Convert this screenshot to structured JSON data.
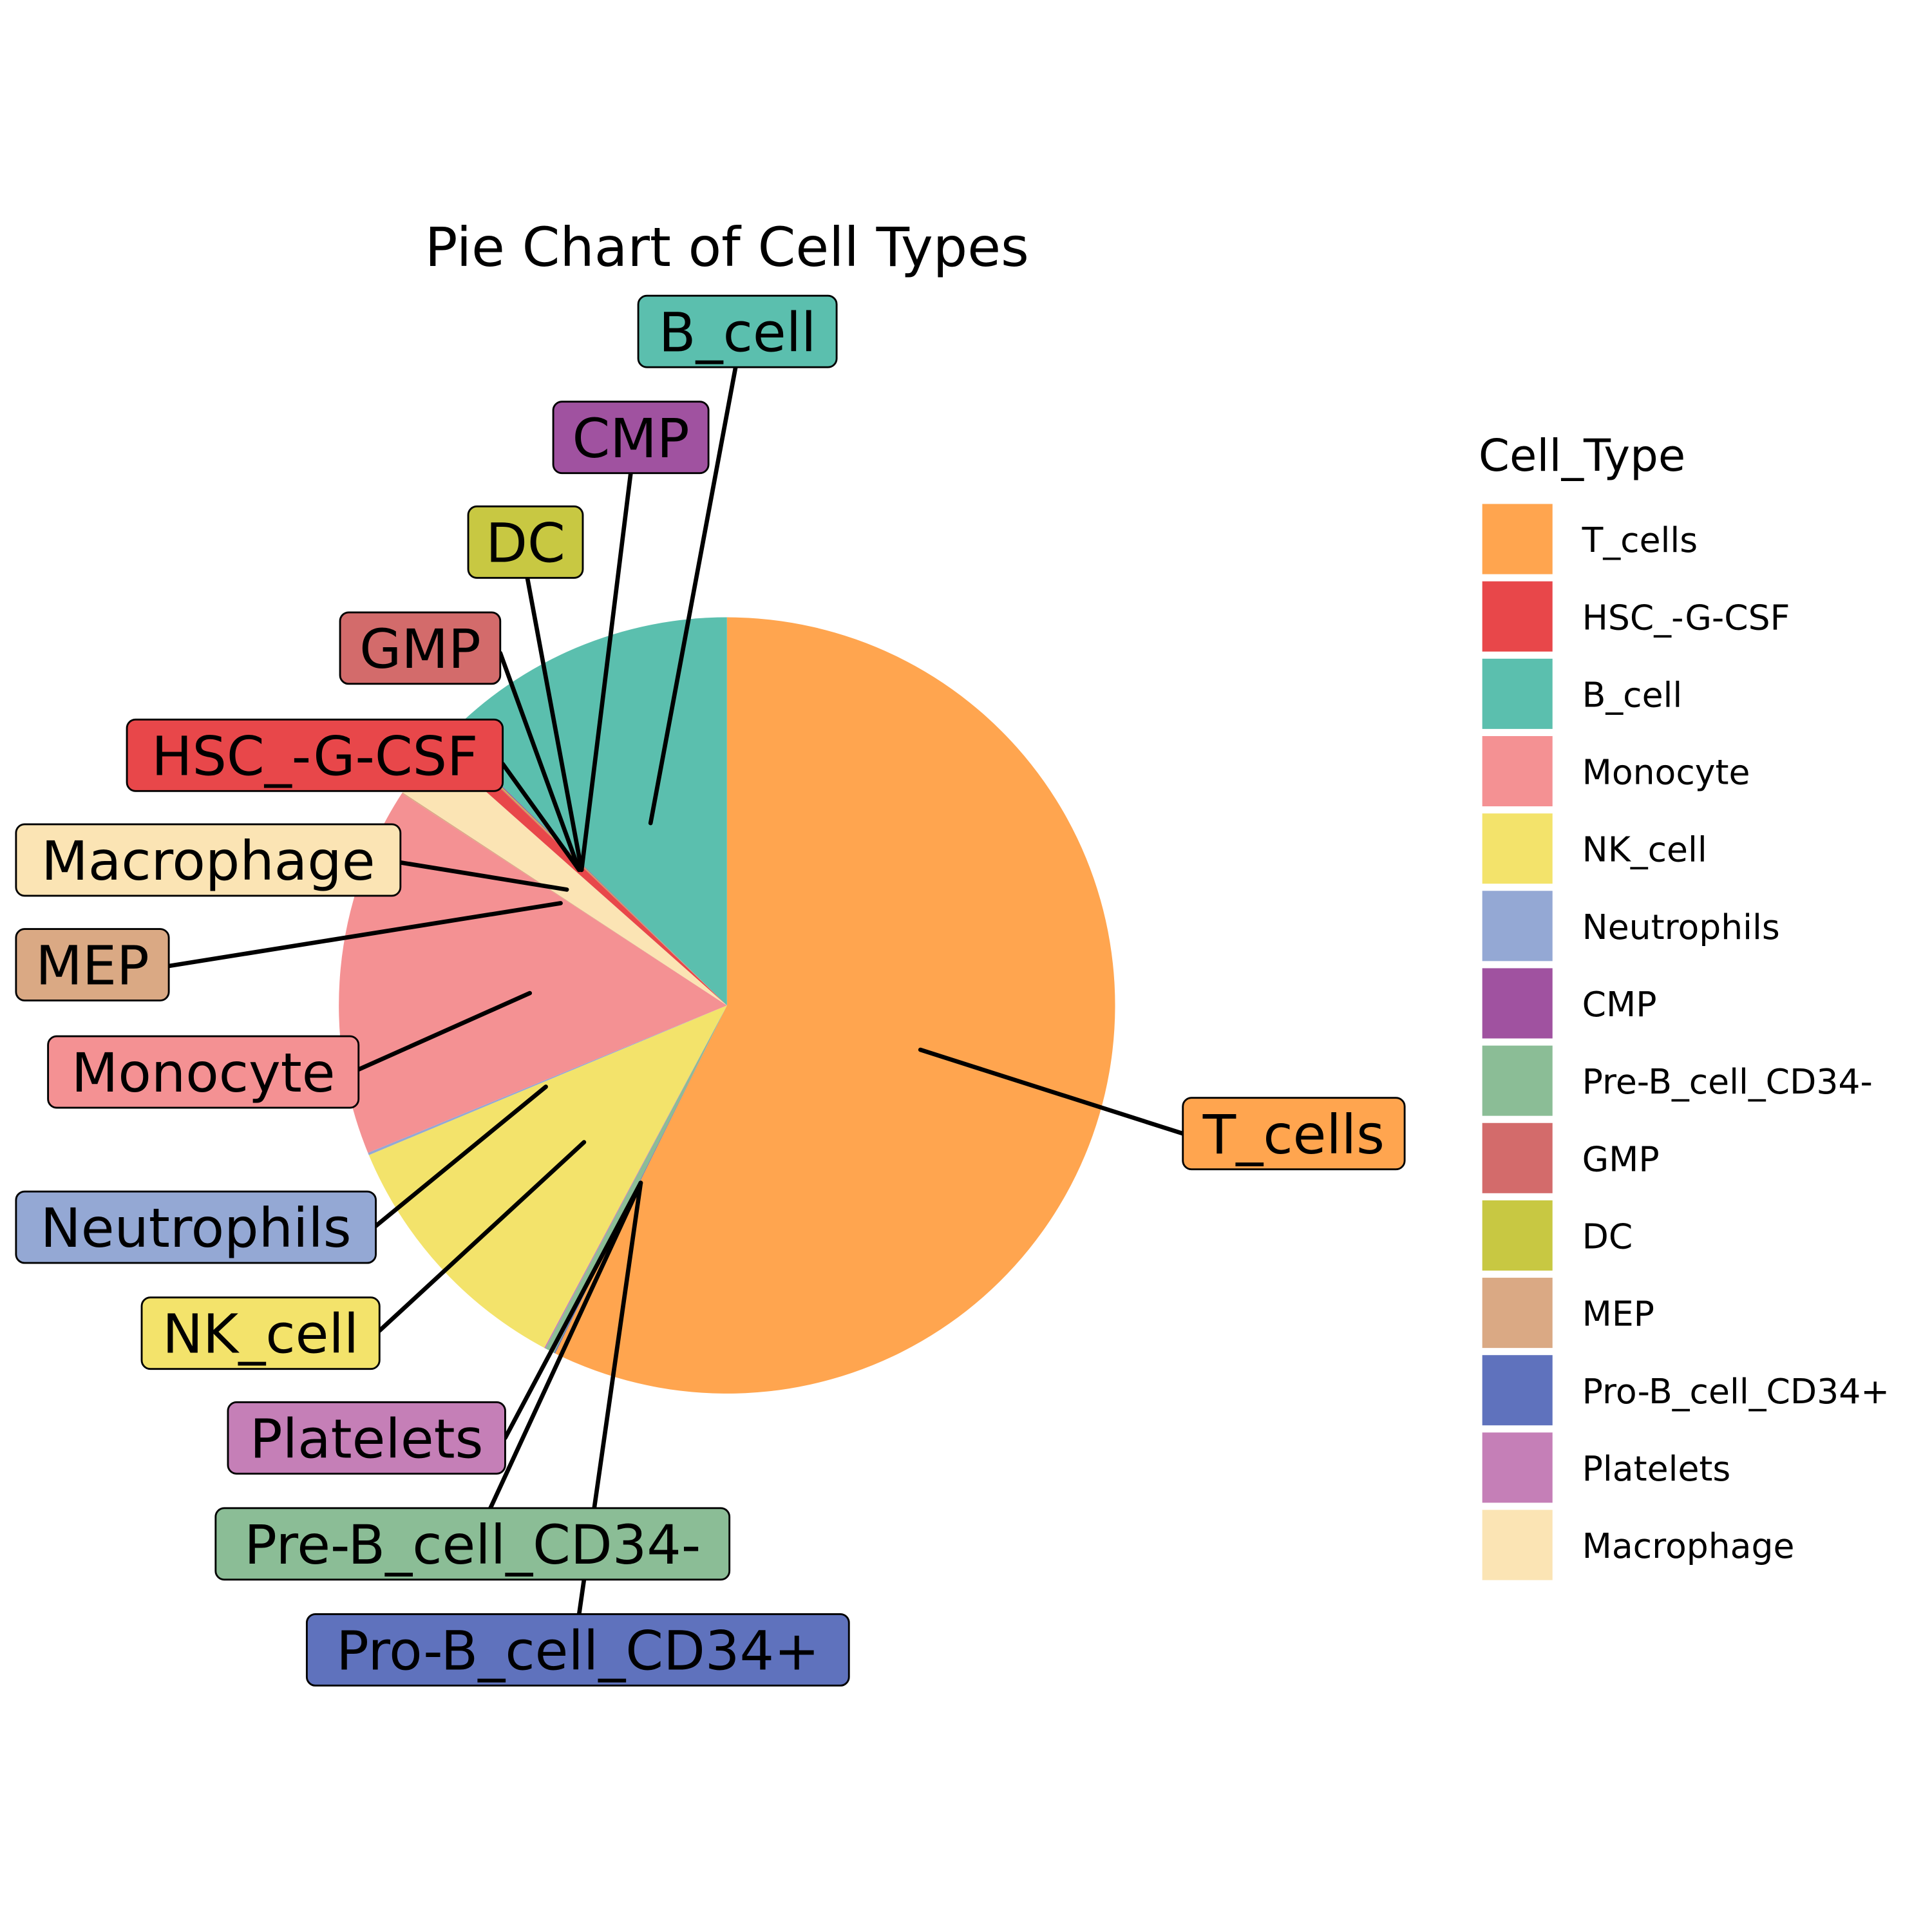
{
  "chart_data": {
    "type": "pie",
    "title": "Pie Chart of Cell Types",
    "start": "top",
    "direction": "clockwise",
    "slices": [
      {
        "label": "T_cells",
        "value": 57.3,
        "color": "#FFA54F"
      },
      {
        "label": "Pro-B_cell_CD34+",
        "value": 0.05,
        "color": "#5F72BD"
      },
      {
        "label": "Pre-B_cell_CD34-",
        "value": 0.4,
        "color": "#8BBD96"
      },
      {
        "label": "Platelets",
        "value": 0.05,
        "color": "#C57FB7"
      },
      {
        "label": "NK_cell",
        "value": 10.9,
        "color": "#F3E36B"
      },
      {
        "label": "Neutrophils",
        "value": 0.1,
        "color": "#94A8D4"
      },
      {
        "label": "Monocyte",
        "value": 15.4,
        "color": "#F49193"
      },
      {
        "label": "MEP",
        "value": 0.05,
        "color": "#DAA984"
      },
      {
        "label": "Macrophage",
        "value": 2.3,
        "color": "#FBE4B4"
      },
      {
        "label": "HSC_-G-CSF",
        "value": 0.6,
        "color": "#E8474A"
      },
      {
        "label": "GMP",
        "value": 0.05,
        "color": "#D36B6B"
      },
      {
        "label": "DC",
        "value": 0.05,
        "color": "#C8C842"
      },
      {
        "label": "CMP",
        "value": 0.05,
        "color": "#A052A0"
      },
      {
        "label": "B_cell",
        "value": 12.7,
        "color": "#5BBFAE"
      }
    ],
    "legend": {
      "title": "Cell_Type",
      "placement": "right",
      "entries": [
        "T_cells",
        "HSC_-G-CSF",
        "B_cell",
        "Monocyte",
        "NK_cell",
        "Neutrophils",
        "CMP",
        "Pre-B_cell_CD34-",
        "GMP",
        "DC",
        "MEP",
        "Pro-B_cell_CD34+",
        "Platelets",
        "Macrophage"
      ]
    }
  }
}
